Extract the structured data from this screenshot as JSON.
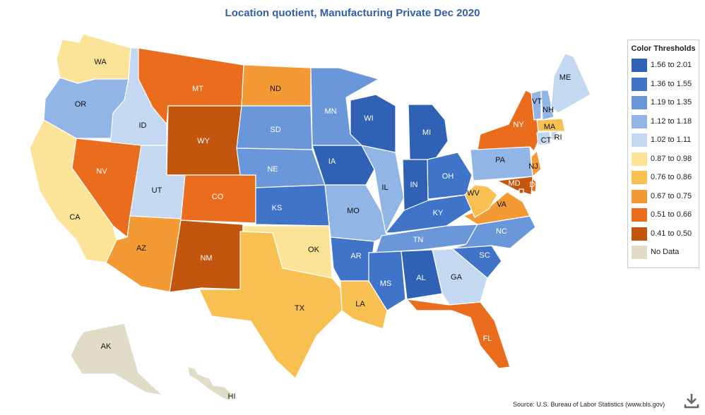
{
  "title": "Location quotient, Manufacturing Private Dec 2020",
  "legend": {
    "title": "Color Thresholds",
    "items": [
      {
        "label": "1.56 to 2.01",
        "color": "#2f62b5"
      },
      {
        "label": "1.36 to 1.55",
        "color": "#3f74c8"
      },
      {
        "label": "1.19 to 1.35",
        "color": "#6a97da"
      },
      {
        "label": "1.12 to 1.18",
        "color": "#91b5e5"
      },
      {
        "label": "1.02 to 1.11",
        "color": "#c5d8f2"
      },
      {
        "label": "0.87 to 0.98",
        "color": "#fbe497"
      },
      {
        "label": "0.76 to 0.86",
        "color": "#f8c050"
      },
      {
        "label": "0.67 to 0.75",
        "color": "#f49a35"
      },
      {
        "label": "0.51 to 0.66",
        "color": "#ea6d1e"
      },
      {
        "label": "0.41 to 0.50",
        "color": "#c2560f"
      },
      {
        "label": "No Data",
        "color": "#e0dcc7"
      }
    ]
  },
  "states": [
    {
      "abbr": "WA",
      "bin": 5
    },
    {
      "abbr": "OR",
      "bin": 3
    },
    {
      "abbr": "CA",
      "bin": 5
    },
    {
      "abbr": "ID",
      "bin": 4
    },
    {
      "abbr": "NV",
      "bin": 8
    },
    {
      "abbr": "MT",
      "bin": 8
    },
    {
      "abbr": "WY",
      "bin": 9
    },
    {
      "abbr": "UT",
      "bin": 4
    },
    {
      "abbr": "AZ",
      "bin": 7
    },
    {
      "abbr": "CO",
      "bin": 8
    },
    {
      "abbr": "NM",
      "bin": 9
    },
    {
      "abbr": "ND",
      "bin": 7
    },
    {
      "abbr": "SD",
      "bin": 2
    },
    {
      "abbr": "NE",
      "bin": 2
    },
    {
      "abbr": "KS",
      "bin": 1
    },
    {
      "abbr": "OK",
      "bin": 5
    },
    {
      "abbr": "TX",
      "bin": 6
    },
    {
      "abbr": "MN",
      "bin": 2
    },
    {
      "abbr": "IA",
      "bin": 0
    },
    {
      "abbr": "MO",
      "bin": 3
    },
    {
      "abbr": "AR",
      "bin": 1
    },
    {
      "abbr": "LA",
      "bin": 6
    },
    {
      "abbr": "WI",
      "bin": 0
    },
    {
      "abbr": "IL",
      "bin": 3
    },
    {
      "abbr": "MI",
      "bin": 0
    },
    {
      "abbr": "IN",
      "bin": 0
    },
    {
      "abbr": "OH",
      "bin": 1
    },
    {
      "abbr": "KY",
      "bin": 1
    },
    {
      "abbr": "TN",
      "bin": 2
    },
    {
      "abbr": "MS",
      "bin": 1
    },
    {
      "abbr": "AL",
      "bin": 0
    },
    {
      "abbr": "GA",
      "bin": 4
    },
    {
      "abbr": "FL",
      "bin": 8
    },
    {
      "abbr": "SC",
      "bin": 1
    },
    {
      "abbr": "NC",
      "bin": 2
    },
    {
      "abbr": "VA",
      "bin": 7
    },
    {
      "abbr": "WV",
      "bin": 6
    },
    {
      "abbr": "PA",
      "bin": 3
    },
    {
      "abbr": "NY",
      "bin": 8
    },
    {
      "abbr": "NJ",
      "bin": 7
    },
    {
      "abbr": "DE",
      "bin": 8
    },
    {
      "abbr": "MD",
      "bin": 9
    },
    {
      "abbr": "DC",
      "bin": 9
    },
    {
      "abbr": "CT",
      "bin": 4
    },
    {
      "abbr": "RI",
      "bin": 4
    },
    {
      "abbr": "MA",
      "bin": 6
    },
    {
      "abbr": "VT",
      "bin": 3
    },
    {
      "abbr": "NH",
      "bin": 3
    },
    {
      "abbr": "ME",
      "bin": 4
    },
    {
      "abbr": "AK",
      "bin": 10
    },
    {
      "abbr": "HI",
      "bin": 10
    }
  ],
  "source": "Source: U.S. Bureau of Labor Statistics (www.bls.gov)",
  "download_icon": "download-icon"
}
